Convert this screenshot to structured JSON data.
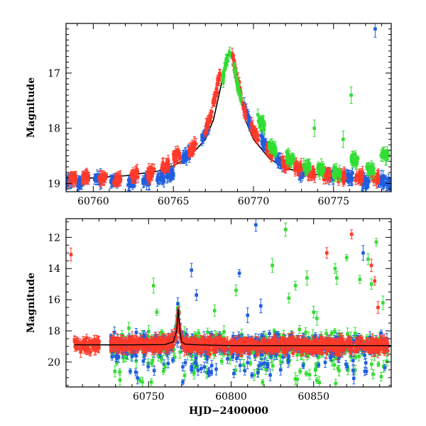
{
  "chart_data": [
    {
      "type": "scatter",
      "panel": "top",
      "xlabel": "",
      "ylabel": "Magnitude",
      "xlim": [
        60758.3,
        60778.6
      ],
      "ylim": [
        19.15,
        16.1
      ],
      "y_inverted": true,
      "xticks": [
        60760,
        60765,
        60770,
        60775
      ],
      "yticks": [
        17,
        18,
        19
      ],
      "colors": {
        "blue": "#1f5fe0",
        "red": "#ff3a2a",
        "green": "#33dd33",
        "model": "#000000"
      },
      "model_curve": {
        "description_in_units": "baseline-peaked light curve",
        "x": [
          60758.3,
          60760,
          60762,
          60764,
          60765,
          60766,
          60767,
          60767.5,
          60768,
          60768.3,
          60768.5,
          60768.7,
          60769,
          60769.5,
          60770,
          60771,
          60772,
          60773,
          60775,
          60778.6
        ],
        "y": [
          18.93,
          18.9,
          18.86,
          18.78,
          18.68,
          18.52,
          18.2,
          17.85,
          17.2,
          16.75,
          16.6,
          16.75,
          17.2,
          17.85,
          18.2,
          18.55,
          18.72,
          18.8,
          18.88,
          18.93
        ]
      },
      "series": [
        {
          "name": "blue",
          "clusters": [
            [
              60758.5,
              18.95
            ],
            [
              60759.2,
              18.98
            ],
            [
              60760.3,
              18.93
            ],
            [
              60761.3,
              18.95
            ],
            [
              60762.4,
              18.97
            ],
            [
              60763.3,
              18.95
            ],
            [
              60764.2,
              18.9
            ],
            [
              60764.8,
              18.85
            ],
            [
              60765.8,
              18.5
            ],
            [
              60767.0,
              18.1
            ],
            [
              60769.6,
              17.75
            ],
            [
              60770.7,
              18.3
            ],
            [
              60771.6,
              18.6
            ],
            [
              60773.0,
              18.8
            ],
            [
              60774.8,
              18.85
            ],
            [
              60776.0,
              18.9
            ],
            [
              60777.0,
              18.98
            ],
            [
              60778.0,
              18.95
            ],
            [
              60778.5,
              19.0
            ]
          ],
          "outliers": [
            [
              60777.6,
              16.2
            ]
          ]
        },
        {
          "name": "red",
          "clusters": [
            [
              60758.7,
              18.9
            ],
            [
              60759.5,
              18.88
            ],
            [
              60760.6,
              18.9
            ],
            [
              60761.5,
              18.93
            ],
            [
              60762.6,
              18.85
            ],
            [
              60763.6,
              18.82
            ],
            [
              60764.5,
              18.68
            ],
            [
              60765.2,
              18.5
            ],
            [
              60766.2,
              18.35
            ],
            [
              60767.2,
              17.9
            ],
            [
              60767.7,
              17.3
            ],
            [
              60768.9,
              17.0
            ],
            [
              60769.3,
              17.5
            ],
            [
              60770.1,
              18.1
            ],
            [
              60771.0,
              18.45
            ],
            [
              60772.0,
              18.65
            ],
            [
              60772.8,
              18.72
            ],
            [
              60773.6,
              18.8
            ],
            [
              60774.6,
              18.85
            ],
            [
              60775.5,
              18.9
            ],
            [
              60776.6,
              18.88
            ],
            [
              60777.6,
              18.9
            ]
          ],
          "outliers": []
        },
        {
          "name": "green",
          "clusters": [
            [
              60768.3,
              16.8
            ],
            [
              60769.0,
              17.2
            ],
            [
              60770.5,
              17.9
            ],
            [
              60771.2,
              18.35
            ],
            [
              60772.3,
              18.55
            ],
            [
              60773.3,
              18.7
            ],
            [
              60774.2,
              18.75
            ],
            [
              60775.2,
              18.8
            ],
            [
              60776.3,
              18.6
            ],
            [
              60777.3,
              18.75
            ],
            [
              60778.2,
              18.5
            ]
          ],
          "outliers": [
            [
              60776.1,
              17.4
            ],
            [
              60773.8,
              18.0
            ],
            [
              60775.6,
              18.2
            ]
          ]
        }
      ]
    },
    {
      "type": "scatter",
      "panel": "bottom",
      "xlabel": "HJD−2400000",
      "ylabel": "Magnitude",
      "xlim": [
        60700,
        60897
      ],
      "ylim": [
        21.6,
        10.8
      ],
      "y_inverted": true,
      "xticks": [
        60750,
        60800,
        60850
      ],
      "yticks": [
        12,
        14,
        16,
        18,
        20
      ],
      "model_curve": {
        "x": [
          60705,
          60720,
          60740,
          60760,
          60765,
          60767,
          60768,
          60769,
          60770,
          60772,
          60780,
          60800,
          60850,
          60897
        ],
        "y": [
          18.9,
          18.9,
          18.9,
          18.88,
          18.7,
          18.0,
          16.6,
          18.0,
          18.7,
          18.85,
          18.9,
          18.95,
          18.95,
          18.95
        ]
      },
      "series": [
        {
          "name": "red",
          "outliers": [
            [
              60703,
              13.1
            ],
            [
              60720,
              18.7
            ],
            [
              60740,
              18.4
            ],
            [
              60858,
              13.0
            ],
            [
              60873,
              11.8
            ],
            [
              60885,
              13.8
            ],
            [
              60887,
              14.8
            ],
            [
              60889,
              16.5
            ]
          ]
        },
        {
          "name": "blue",
          "outliers": [
            [
              60776,
              14.1
            ],
            [
              60779,
              15.7
            ],
            [
              60805,
              14.3
            ],
            [
              60815,
              11.2
            ],
            [
              60810,
              17.0
            ],
            [
              60818,
              16.4
            ],
            [
              60830,
              20.5
            ],
            [
              60880,
              13.0
            ],
            [
              60881,
              20.6
            ],
            [
              60776,
              20.3
            ]
          ]
        },
        {
          "name": "green",
          "outliers": [
            [
              60753,
              15.1
            ],
            [
              60755,
              16.8
            ],
            [
              60790,
              16.7
            ],
            [
              60803,
              15.4
            ],
            [
              60825,
              13.8
            ],
            [
              60833,
              11.5
            ],
            [
              60835,
              15.9
            ],
            [
              60839,
              15.1
            ],
            [
              60846,
              14.6
            ],
            [
              60850,
              16.8
            ],
            [
              60852,
              17.2
            ],
            [
              60863,
              14.0
            ],
            [
              60864,
              14.6
            ],
            [
              60870,
              13.3
            ],
            [
              60883,
              13.4
            ],
            [
              60888,
              12.3
            ],
            [
              60878,
              14.7
            ],
            [
              60885,
              15.0
            ],
            [
              60892,
              16.2
            ],
            [
              60760,
              20.3
            ]
          ]
        }
      ]
    }
  ]
}
